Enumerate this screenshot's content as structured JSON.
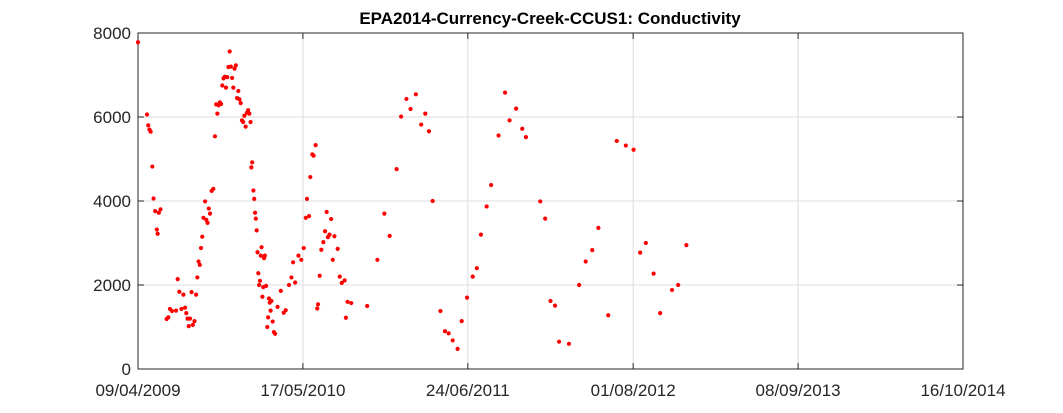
{
  "chart_data": {
    "type": "scatter",
    "title": "EPA2014-Currency-Creek-CCUS1: Conductivity",
    "xlabel": "",
    "ylabel": "",
    "x_axis_type": "date",
    "xlim": [
      "2009-04-09",
      "2014-10-16"
    ],
    "ylim": [
      0,
      8000
    ],
    "x_ticks": [
      "2009-04-09",
      "2010-05-17",
      "2011-06-24",
      "2012-08-01",
      "2013-09-08",
      "2014-10-16"
    ],
    "x_tick_labels": [
      "09/04/2009",
      "17/05/2010",
      "24/06/2011",
      "01/08/2012",
      "08/09/2013",
      "16/10/2014"
    ],
    "y_ticks": [
      0,
      2000,
      4000,
      6000,
      8000
    ],
    "y_tick_labels": [
      "0",
      "2000",
      "4000",
      "6000",
      "8000"
    ],
    "grid": true,
    "marker_color": "#ff0000",
    "series": [
      {
        "name": "",
        "points": [
          [
            "2009-04-09",
            7780
          ],
          [
            "2009-05-01",
            6060
          ],
          [
            "2009-05-04",
            5800
          ],
          [
            "2009-05-07",
            5700
          ],
          [
            "2009-05-10",
            5650
          ],
          [
            "2009-05-14",
            4820
          ],
          [
            "2009-05-17",
            4060
          ],
          [
            "2009-05-21",
            3760
          ],
          [
            "2009-05-25",
            3320
          ],
          [
            "2009-05-27",
            3220
          ],
          [
            "2009-05-30",
            3720
          ],
          [
            "2009-06-03",
            3800
          ],
          [
            "2009-06-18",
            1190
          ],
          [
            "2009-06-22",
            1230
          ],
          [
            "2009-06-26",
            1430
          ],
          [
            "2009-07-01",
            1380
          ],
          [
            "2009-07-11",
            1390
          ],
          [
            "2009-07-15",
            2140
          ],
          [
            "2009-07-19",
            1840
          ],
          [
            "2009-07-24",
            1430
          ],
          [
            "2009-07-29",
            1770
          ],
          [
            "2009-08-02",
            1460
          ],
          [
            "2009-08-05",
            1330
          ],
          [
            "2009-08-08",
            1200
          ],
          [
            "2009-08-11",
            1020
          ],
          [
            "2009-08-14",
            1200
          ],
          [
            "2009-08-18",
            1830
          ],
          [
            "2009-08-21",
            1050
          ],
          [
            "2009-08-25",
            1140
          ],
          [
            "2009-08-29",
            1770
          ],
          [
            "2009-09-01",
            2180
          ],
          [
            "2009-09-04",
            2560
          ],
          [
            "2009-09-07",
            2480
          ],
          [
            "2009-09-10",
            2880
          ],
          [
            "2009-09-13",
            3150
          ],
          [
            "2009-09-16",
            3600
          ],
          [
            "2009-09-20",
            3990
          ],
          [
            "2009-09-23",
            3550
          ],
          [
            "2009-09-26",
            3480
          ],
          [
            "2009-09-29",
            3820
          ],
          [
            "2009-10-02",
            3700
          ],
          [
            "2009-10-06",
            4240
          ],
          [
            "2009-10-10",
            4290
          ],
          [
            "2009-10-14",
            5540
          ],
          [
            "2009-10-17",
            6300
          ],
          [
            "2009-10-20",
            6080
          ],
          [
            "2009-10-23",
            6280
          ],
          [
            "2009-10-26",
            6350
          ],
          [
            "2009-10-29",
            6310
          ],
          [
            "2009-11-01",
            6750
          ],
          [
            "2009-11-04",
            6920
          ],
          [
            "2009-11-07",
            6960
          ],
          [
            "2009-11-10",
            6700
          ],
          [
            "2009-11-13",
            6950
          ],
          [
            "2009-11-16",
            7190
          ],
          [
            "2009-11-19",
            7560
          ],
          [
            "2009-11-22",
            7200
          ],
          [
            "2009-11-25",
            6930
          ],
          [
            "2009-11-28",
            6700
          ],
          [
            "2009-12-01",
            7150
          ],
          [
            "2009-12-04",
            7230
          ],
          [
            "2009-12-07",
            6450
          ],
          [
            "2009-12-10",
            6620
          ],
          [
            "2009-12-13",
            6420
          ],
          [
            "2009-12-16",
            6330
          ],
          [
            "2009-12-19",
            5920
          ],
          [
            "2009-12-22",
            5880
          ],
          [
            "2009-12-25",
            6030
          ],
          [
            "2009-12-28",
            5770
          ],
          [
            "2009-12-31",
            6100
          ],
          [
            "2010-01-03",
            6160
          ],
          [
            "2010-01-06",
            6080
          ],
          [
            "2010-01-09",
            5880
          ],
          [
            "2010-01-11",
            4800
          ],
          [
            "2010-01-13",
            4920
          ],
          [
            "2010-01-16",
            4250
          ],
          [
            "2010-01-18",
            4050
          ],
          [
            "2010-01-20",
            3720
          ],
          [
            "2010-01-22",
            3580
          ],
          [
            "2010-01-24",
            3300
          ],
          [
            "2010-01-26",
            2780
          ],
          [
            "2010-01-28",
            2280
          ],
          [
            "2010-01-30",
            2000
          ],
          [
            "2010-02-01",
            2100
          ],
          [
            "2010-02-03",
            2700
          ],
          [
            "2010-02-05",
            2900
          ],
          [
            "2010-02-07",
            1720
          ],
          [
            "2010-02-09",
            1950
          ],
          [
            "2010-02-11",
            2640
          ],
          [
            "2010-02-13",
            2700
          ],
          [
            "2010-02-16",
            1980
          ],
          [
            "2010-02-19",
            1000
          ],
          [
            "2010-02-21",
            1230
          ],
          [
            "2010-02-23",
            1680
          ],
          [
            "2010-02-25",
            1580
          ],
          [
            "2010-02-27",
            1390
          ],
          [
            "2010-03-01",
            1620
          ],
          [
            "2010-03-04",
            1130
          ],
          [
            "2010-03-07",
            880
          ],
          [
            "2010-03-10",
            840
          ],
          [
            "2010-03-16",
            1480
          ],
          [
            "2010-03-24",
            1860
          ],
          [
            "2010-03-31",
            1340
          ],
          [
            "2010-04-05",
            1400
          ],
          [
            "2010-04-13",
            2000
          ],
          [
            "2010-04-19",
            2180
          ],
          [
            "2010-04-23",
            2540
          ],
          [
            "2010-04-28",
            2060
          ],
          [
            "2010-05-06",
            2700
          ],
          [
            "2010-05-13",
            2600
          ],
          [
            "2010-05-19",
            2880
          ],
          [
            "2010-05-24",
            3600
          ],
          [
            "2010-05-27",
            4050
          ],
          [
            "2010-06-01",
            3640
          ],
          [
            "2010-06-04",
            4570
          ],
          [
            "2010-06-09",
            5110
          ],
          [
            "2010-06-12",
            5080
          ],
          [
            "2010-06-17",
            5330
          ],
          [
            "2010-06-21",
            1440
          ],
          [
            "2010-06-23",
            1540
          ],
          [
            "2010-06-27",
            2220
          ],
          [
            "2010-07-01",
            2840
          ],
          [
            "2010-07-06",
            3020
          ],
          [
            "2010-07-10",
            3280
          ],
          [
            "2010-07-14",
            3740
          ],
          [
            "2010-07-17",
            3140
          ],
          [
            "2010-07-21",
            3200
          ],
          [
            "2010-07-25",
            3570
          ],
          [
            "2010-07-29",
            2600
          ],
          [
            "2010-08-02",
            3160
          ],
          [
            "2010-08-10",
            2860
          ],
          [
            "2010-08-15",
            2200
          ],
          [
            "2010-08-20",
            2050
          ],
          [
            "2010-08-27",
            2110
          ],
          [
            "2010-08-30",
            1220
          ],
          [
            "2010-09-03",
            1600
          ],
          [
            "2010-09-12",
            1570
          ],
          [
            "2010-10-21",
            1500
          ],
          [
            "2010-11-15",
            2600
          ],
          [
            "2010-12-02",
            3700
          ],
          [
            "2010-12-15",
            3170
          ],
          [
            "2011-01-01",
            4760
          ],
          [
            "2011-01-12",
            6010
          ],
          [
            "2011-01-25",
            6430
          ],
          [
            "2011-02-04",
            6190
          ],
          [
            "2011-02-17",
            6540
          ],
          [
            "2011-03-02",
            5820
          ],
          [
            "2011-03-12",
            6080
          ],
          [
            "2011-03-21",
            5660
          ],
          [
            "2011-03-30",
            4000
          ],
          [
            "2011-04-18",
            1380
          ],
          [
            "2011-04-29",
            900
          ],
          [
            "2011-05-08",
            850
          ],
          [
            "2011-05-18",
            680
          ],
          [
            "2011-05-30",
            480
          ],
          [
            "2011-06-09",
            1140
          ],
          [
            "2011-06-22",
            1700
          ],
          [
            "2011-07-06",
            2200
          ],
          [
            "2011-07-16",
            2400
          ],
          [
            "2011-07-26",
            3200
          ],
          [
            "2011-08-09",
            3870
          ],
          [
            "2011-08-20",
            4380
          ],
          [
            "2011-09-07",
            5560
          ],
          [
            "2011-09-23",
            6580
          ],
          [
            "2011-10-04",
            5920
          ],
          [
            "2011-10-20",
            6200
          ],
          [
            "2011-11-04",
            5720
          ],
          [
            "2011-11-13",
            5520
          ],
          [
            "2011-12-18",
            3990
          ],
          [
            "2011-12-30",
            3580
          ],
          [
            "2012-01-12",
            1620
          ],
          [
            "2012-01-23",
            1510
          ],
          [
            "2012-02-02",
            650
          ],
          [
            "2012-02-26",
            600
          ],
          [
            "2012-03-22",
            2000
          ],
          [
            "2012-04-07",
            2560
          ],
          [
            "2012-04-23",
            2830
          ],
          [
            "2012-05-08",
            3360
          ],
          [
            "2012-06-01",
            1280
          ],
          [
            "2012-06-22",
            5430
          ],
          [
            "2012-07-14",
            5320
          ],
          [
            "2012-08-02",
            5220
          ],
          [
            "2012-08-18",
            2770
          ],
          [
            "2012-09-01",
            3000
          ],
          [
            "2012-09-20",
            2270
          ],
          [
            "2012-10-06",
            1330
          ],
          [
            "2012-11-04",
            1880
          ],
          [
            "2012-11-19",
            2000
          ],
          [
            "2012-12-09",
            2950
          ]
        ]
      }
    ]
  }
}
